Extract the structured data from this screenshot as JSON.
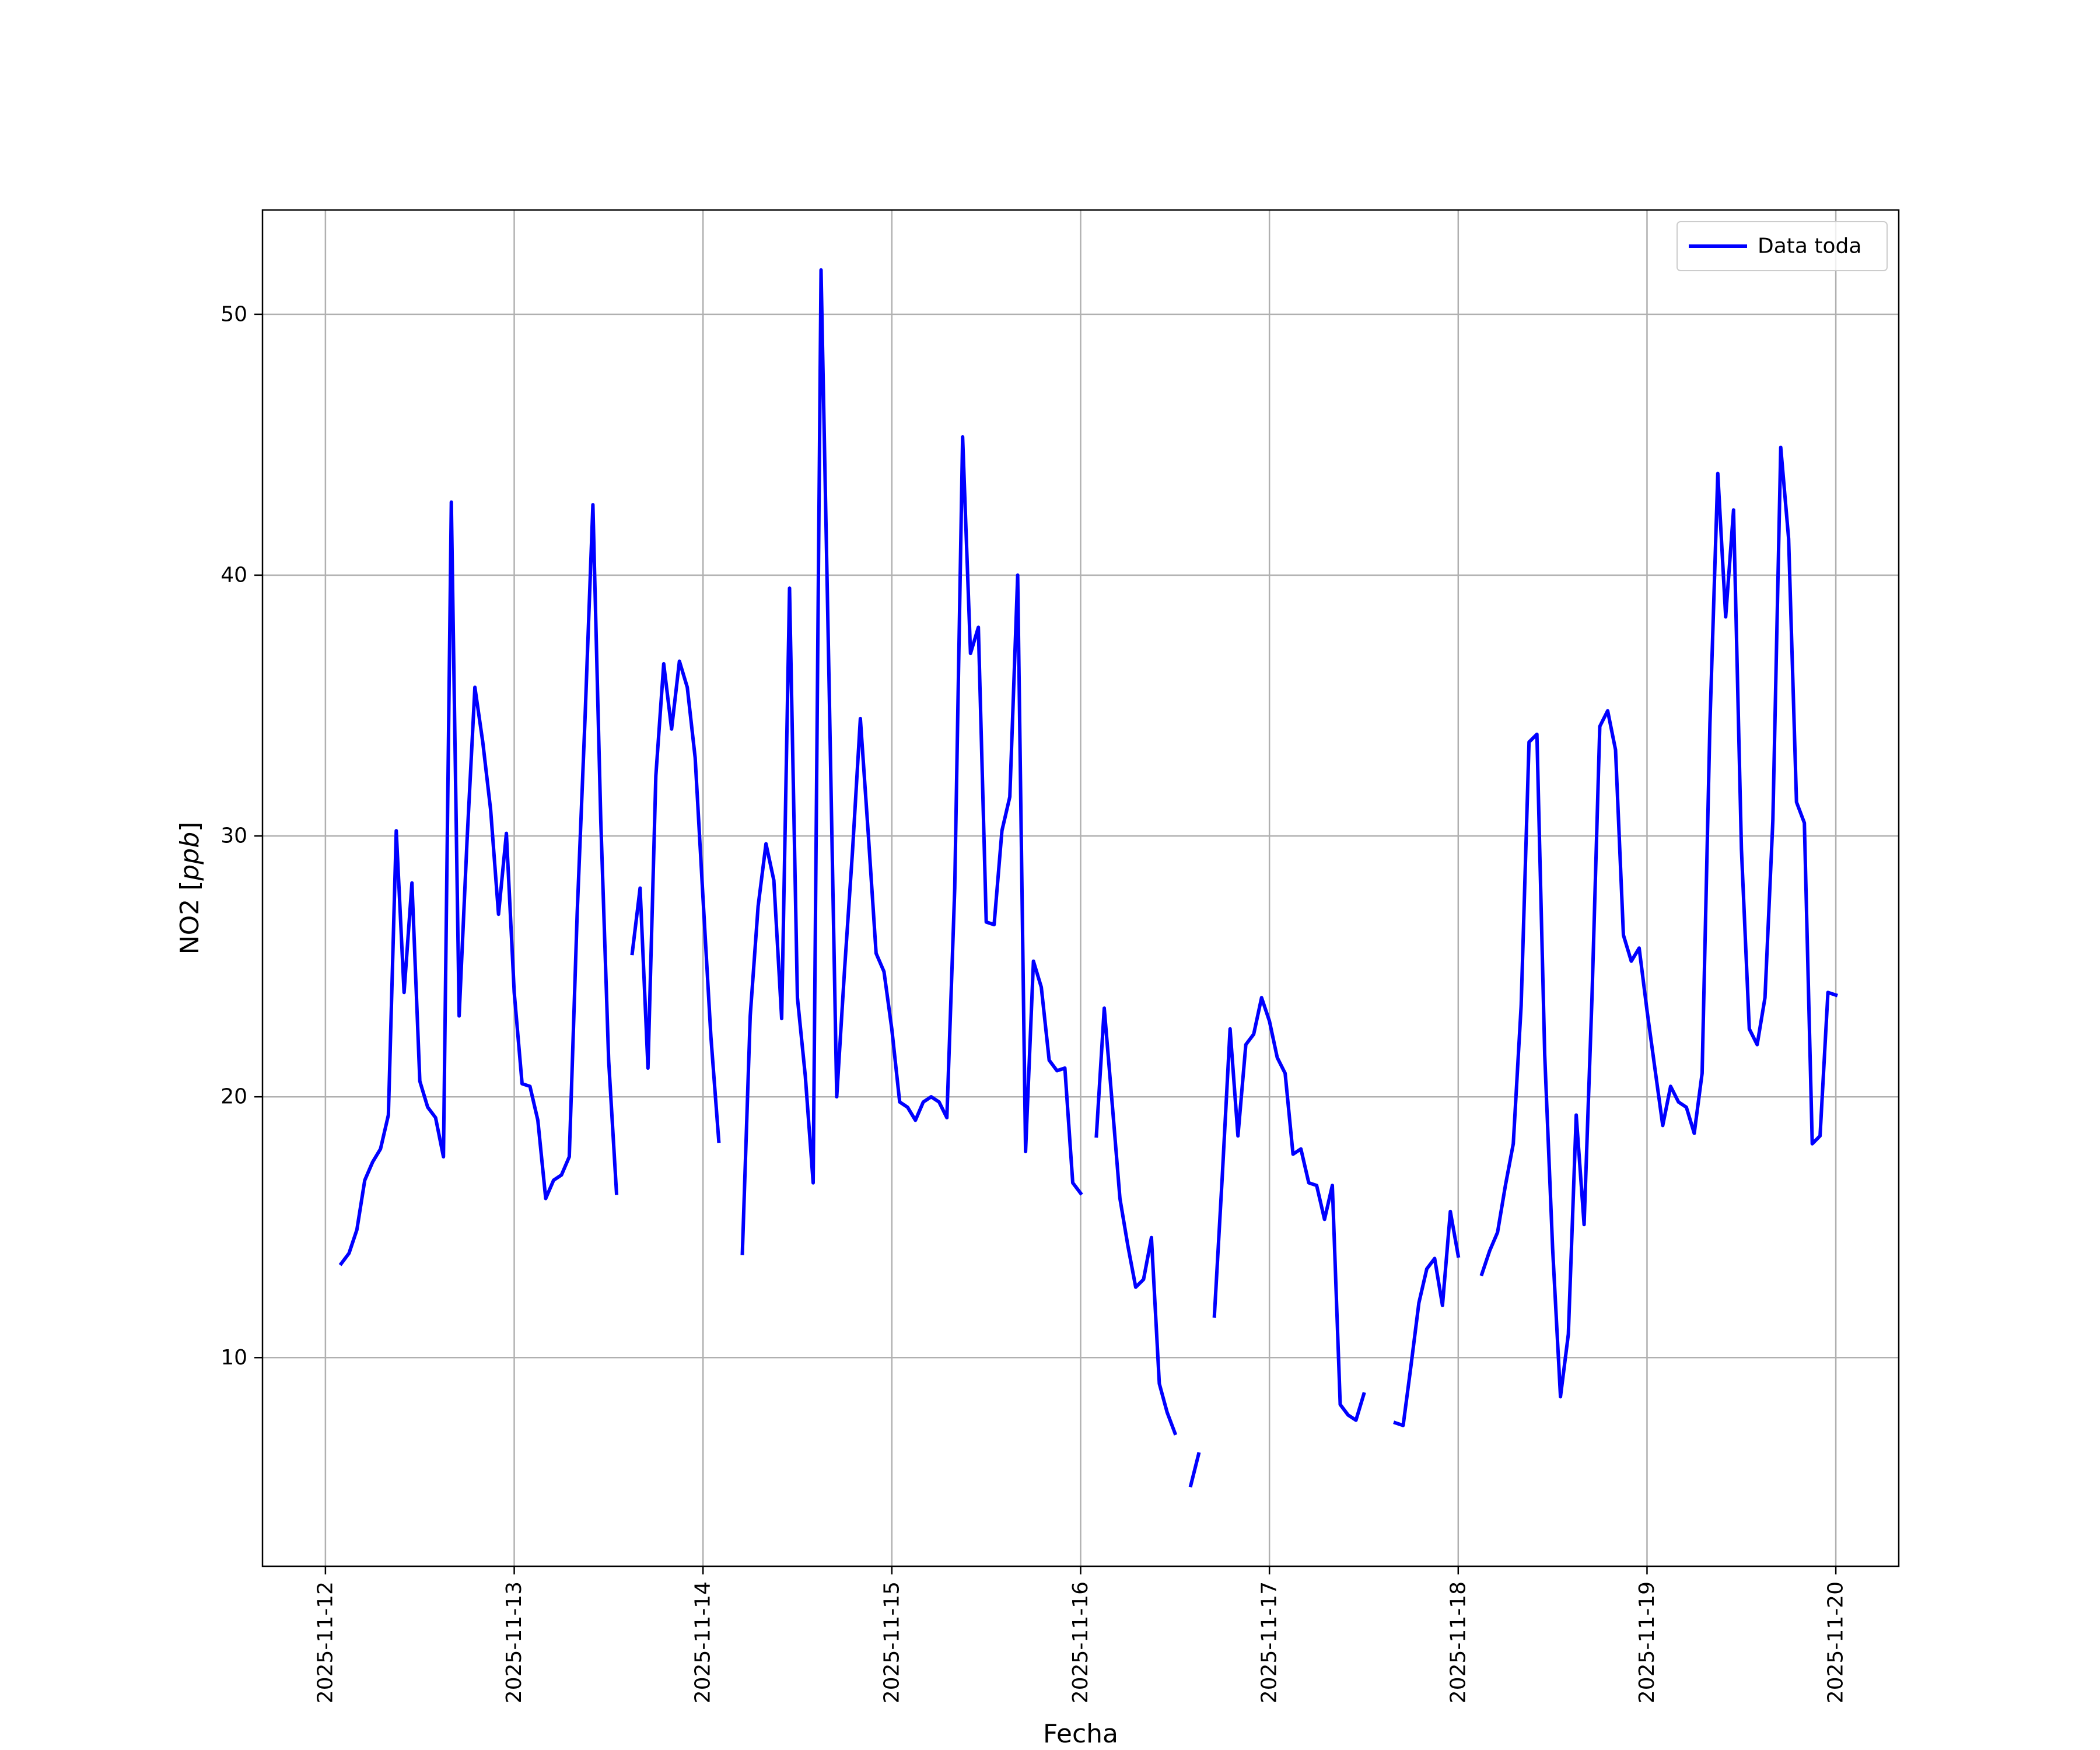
{
  "chart_data": {
    "type": "line",
    "title": "",
    "xlabel": "Fecha",
    "ylabel": "NO2 [ppb]",
    "ylabel_main": "NO2 [",
    "ylabel_unit": "ppb",
    "ylabel_close": "]",
    "xlim": [
      "2025-11-11T16:00",
      "2025-11-20T08:00"
    ],
    "ylim": [
      2.0,
      54.0
    ],
    "x_ticks": [
      "2025-11-12",
      "2025-11-13",
      "2025-11-14",
      "2025-11-15",
      "2025-11-16",
      "2025-11-17",
      "2025-11-18",
      "2025-11-19",
      "2025-11-20"
    ],
    "y_ticks": [
      10,
      20,
      30,
      40,
      50
    ],
    "grid": true,
    "legend_position": "top-right",
    "colors": {
      "line": "#0000ff",
      "grid": "#b0b0b0",
      "frame": "#000000"
    },
    "series": [
      {
        "name": "Data toda",
        "points": [
          [
            "2025-11-12T02:00",
            13.6
          ],
          [
            "2025-11-12T03:00",
            14.0
          ],
          [
            "2025-11-12T04:00",
            14.9
          ],
          [
            "2025-11-12T05:00",
            16.8
          ],
          [
            "2025-11-12T06:00",
            17.5
          ],
          [
            "2025-11-12T07:00",
            18.0
          ],
          [
            "2025-11-12T08:00",
            19.3
          ],
          [
            "2025-11-12T09:00",
            30.2
          ],
          [
            "2025-11-12T10:00",
            24.0
          ],
          [
            "2025-11-12T11:00",
            28.2
          ],
          [
            "2025-11-12T12:00",
            20.6
          ],
          [
            "2025-11-12T13:00",
            19.6
          ],
          [
            "2025-11-12T14:00",
            19.2
          ],
          [
            "2025-11-12T15:00",
            17.7
          ],
          [
            "2025-11-12T16:00",
            42.8
          ],
          [
            "2025-11-12T17:00",
            23.1
          ],
          [
            "2025-11-12T18:00",
            29.8
          ],
          [
            "2025-11-12T19:00",
            35.7
          ],
          [
            "2025-11-12T20:00",
            33.6
          ],
          [
            "2025-11-12T21:00",
            31.0
          ],
          [
            "2025-11-12T22:00",
            27.0
          ],
          [
            "2025-11-12T23:00",
            30.1
          ],
          [
            "2025-11-13T00:00",
            24.0
          ],
          [
            "2025-11-13T01:00",
            20.5
          ],
          [
            "2025-11-13T02:00",
            20.4
          ],
          [
            "2025-11-13T03:00",
            19.1
          ],
          [
            "2025-11-13T04:00",
            16.1
          ],
          [
            "2025-11-13T05:00",
            16.8
          ],
          [
            "2025-11-13T06:00",
            17.0
          ],
          [
            "2025-11-13T07:00",
            17.7
          ],
          [
            "2025-11-13T08:00",
            27.0
          ],
          [
            "2025-11-13T09:00",
            34.5
          ],
          [
            "2025-11-13T10:00",
            42.7
          ],
          [
            "2025-11-13T11:00",
            30.6
          ],
          [
            "2025-11-13T12:00",
            21.4
          ],
          [
            "2025-11-13T13:00",
            16.3
          ],
          null,
          [
            "2025-11-13T15:00",
            25.5
          ],
          [
            "2025-11-13T16:00",
            28.0
          ],
          [
            "2025-11-13T17:00",
            21.1
          ],
          [
            "2025-11-13T18:00",
            32.3
          ],
          [
            "2025-11-13T19:00",
            36.6
          ],
          [
            "2025-11-13T20:00",
            34.1
          ],
          [
            "2025-11-13T21:00",
            36.7
          ],
          [
            "2025-11-13T22:00",
            35.7
          ],
          [
            "2025-11-13T23:00",
            33.0
          ],
          [
            "2025-11-14T00:00",
            27.6
          ],
          [
            "2025-11-14T01:00",
            22.3
          ],
          [
            "2025-11-14T02:00",
            18.3
          ],
          null,
          [
            "2025-11-14T05:00",
            14.0
          ],
          [
            "2025-11-14T06:00",
            23.1
          ],
          [
            "2025-11-14T07:00",
            27.3
          ],
          [
            "2025-11-14T08:00",
            29.7
          ],
          [
            "2025-11-14T09:00",
            28.3
          ],
          [
            "2025-11-14T10:00",
            23.0
          ],
          [
            "2025-11-14T11:00",
            39.5
          ],
          [
            "2025-11-14T12:00",
            23.8
          ],
          [
            "2025-11-14T13:00",
            20.8
          ],
          [
            "2025-11-14T14:00",
            16.7
          ],
          [
            "2025-11-14T15:00",
            51.7
          ],
          [
            "2025-11-14T16:00",
            36.2
          ],
          [
            "2025-11-14T17:00",
            20.0
          ],
          [
            "2025-11-14T18:00",
            24.9
          ],
          [
            "2025-11-14T19:00",
            29.4
          ],
          [
            "2025-11-14T20:00",
            34.5
          ],
          [
            "2025-11-14T21:00",
            30.1
          ],
          [
            "2025-11-14T22:00",
            25.5
          ],
          [
            "2025-11-14T23:00",
            24.8
          ],
          [
            "2025-11-15T00:00",
            22.6
          ],
          [
            "2025-11-15T01:00",
            19.8
          ],
          [
            "2025-11-15T02:00",
            19.6
          ],
          [
            "2025-11-15T03:00",
            19.1
          ],
          [
            "2025-11-15T04:00",
            19.8
          ],
          [
            "2025-11-15T05:00",
            20.0
          ],
          [
            "2025-11-15T06:00",
            19.8
          ],
          [
            "2025-11-15T07:00",
            19.2
          ],
          [
            "2025-11-15T08:00",
            28.0
          ],
          [
            "2025-11-15T09:00",
            45.3
          ],
          [
            "2025-11-15T10:00",
            37.0
          ],
          [
            "2025-11-15T11:00",
            38.0
          ],
          [
            "2025-11-15T12:00",
            26.7
          ],
          [
            "2025-11-15T13:00",
            26.6
          ],
          [
            "2025-11-15T14:00",
            30.2
          ],
          [
            "2025-11-15T15:00",
            31.5
          ],
          [
            "2025-11-15T16:00",
            40.0
          ],
          [
            "2025-11-15T17:00",
            17.9
          ],
          [
            "2025-11-15T18:00",
            25.2
          ],
          [
            "2025-11-15T19:00",
            24.2
          ],
          [
            "2025-11-15T20:00",
            21.4
          ],
          [
            "2025-11-15T21:00",
            21.0
          ],
          [
            "2025-11-15T22:00",
            21.1
          ],
          [
            "2025-11-15T23:00",
            16.7
          ],
          [
            "2025-11-16T00:00",
            16.3
          ],
          null,
          [
            "2025-11-16T02:00",
            18.5
          ],
          [
            "2025-11-16T03:00",
            23.4
          ],
          [
            "2025-11-16T04:00",
            19.8
          ],
          [
            "2025-11-16T05:00",
            16.1
          ],
          [
            "2025-11-16T06:00",
            14.3
          ],
          [
            "2025-11-16T07:00",
            12.7
          ],
          [
            "2025-11-16T08:00",
            13.0
          ],
          [
            "2025-11-16T09:00",
            14.6
          ],
          [
            "2025-11-16T10:00",
            9.0
          ],
          [
            "2025-11-16T11:00",
            7.9
          ],
          [
            "2025-11-16T12:00",
            7.1
          ],
          null,
          [
            "2025-11-16T14:00",
            5.1
          ],
          [
            "2025-11-16T15:00",
            6.3
          ],
          null,
          [
            "2025-11-16T17:00",
            11.6
          ],
          [
            "2025-11-16T18:00",
            16.9
          ],
          [
            "2025-11-16T19:00",
            22.6
          ],
          [
            "2025-11-16T20:00",
            18.5
          ],
          [
            "2025-11-16T21:00",
            22.0
          ],
          [
            "2025-11-16T22:00",
            22.4
          ],
          [
            "2025-11-16T23:00",
            23.8
          ],
          [
            "2025-11-17T00:00",
            22.9
          ],
          [
            "2025-11-17T01:00",
            21.5
          ],
          [
            "2025-11-17T02:00",
            20.9
          ],
          [
            "2025-11-17T03:00",
            17.8
          ],
          [
            "2025-11-17T04:00",
            18.0
          ],
          [
            "2025-11-17T05:00",
            16.7
          ],
          [
            "2025-11-17T06:00",
            16.6
          ],
          [
            "2025-11-17T07:00",
            15.3
          ],
          [
            "2025-11-17T08:00",
            16.6
          ],
          [
            "2025-11-17T09:00",
            8.2
          ],
          [
            "2025-11-17T10:00",
            7.8
          ],
          [
            "2025-11-17T11:00",
            7.6
          ],
          [
            "2025-11-17T12:00",
            8.6
          ],
          null,
          [
            "2025-11-17T16:00",
            7.5
          ],
          [
            "2025-11-17T17:00",
            7.4
          ],
          [
            "2025-11-17T18:00",
            9.7
          ],
          [
            "2025-11-17T19:00",
            12.1
          ],
          [
            "2025-11-17T20:00",
            13.4
          ],
          [
            "2025-11-17T21:00",
            13.8
          ],
          [
            "2025-11-17T22:00",
            12.0
          ],
          [
            "2025-11-17T23:00",
            15.6
          ],
          [
            "2025-11-18T00:00",
            13.9
          ],
          null,
          [
            "2025-11-18T03:00",
            13.2
          ],
          [
            "2025-11-18T04:00",
            14.1
          ],
          [
            "2025-11-18T05:00",
            14.8
          ],
          [
            "2025-11-18T06:00",
            16.6
          ],
          [
            "2025-11-18T07:00",
            18.2
          ],
          [
            "2025-11-18T08:00",
            23.5
          ],
          [
            "2025-11-18T09:00",
            33.6
          ],
          [
            "2025-11-18T10:00",
            33.9
          ],
          [
            "2025-11-18T11:00",
            21.6
          ],
          [
            "2025-11-18T12:00",
            14.2
          ],
          [
            "2025-11-18T13:00",
            8.5
          ],
          [
            "2025-11-18T14:00",
            10.9
          ],
          [
            "2025-11-18T15:00",
            19.3
          ],
          [
            "2025-11-18T16:00",
            15.1
          ],
          [
            "2025-11-18T17:00",
            23.8
          ],
          [
            "2025-11-18T18:00",
            34.2
          ],
          [
            "2025-11-18T19:00",
            34.8
          ],
          [
            "2025-11-18T20:00",
            33.3
          ],
          [
            "2025-11-18T21:00",
            26.2
          ],
          [
            "2025-11-18T22:00",
            25.2
          ],
          [
            "2025-11-18T23:00",
            25.7
          ],
          [
            "2025-11-19T00:00",
            23.3
          ],
          [
            "2025-11-19T01:00",
            21.1
          ],
          [
            "2025-11-19T02:00",
            18.9
          ],
          [
            "2025-11-19T03:00",
            20.4
          ],
          [
            "2025-11-19T04:00",
            19.8
          ],
          [
            "2025-11-19T05:00",
            19.6
          ],
          [
            "2025-11-19T06:00",
            18.6
          ],
          [
            "2025-11-19T07:00",
            20.9
          ],
          [
            "2025-11-19T08:00",
            34.3
          ],
          [
            "2025-11-19T09:00",
            43.9
          ],
          [
            "2025-11-19T10:00",
            38.4
          ],
          [
            "2025-11-19T11:00",
            42.5
          ],
          [
            "2025-11-19T12:00",
            29.5
          ],
          [
            "2025-11-19T13:00",
            22.6
          ],
          [
            "2025-11-19T14:00",
            22.0
          ],
          [
            "2025-11-19T15:00",
            23.8
          ],
          [
            "2025-11-19T16:00",
            30.6
          ],
          [
            "2025-11-19T17:00",
            44.9
          ],
          [
            "2025-11-19T18:00",
            41.4
          ],
          [
            "2025-11-19T19:00",
            31.3
          ],
          [
            "2025-11-19T20:00",
            30.5
          ],
          [
            "2025-11-19T21:00",
            18.2
          ],
          [
            "2025-11-19T22:00",
            18.5
          ],
          [
            "2025-11-19T23:00",
            24.0
          ],
          [
            "2025-11-20T00:00",
            23.9
          ]
        ]
      }
    ]
  }
}
